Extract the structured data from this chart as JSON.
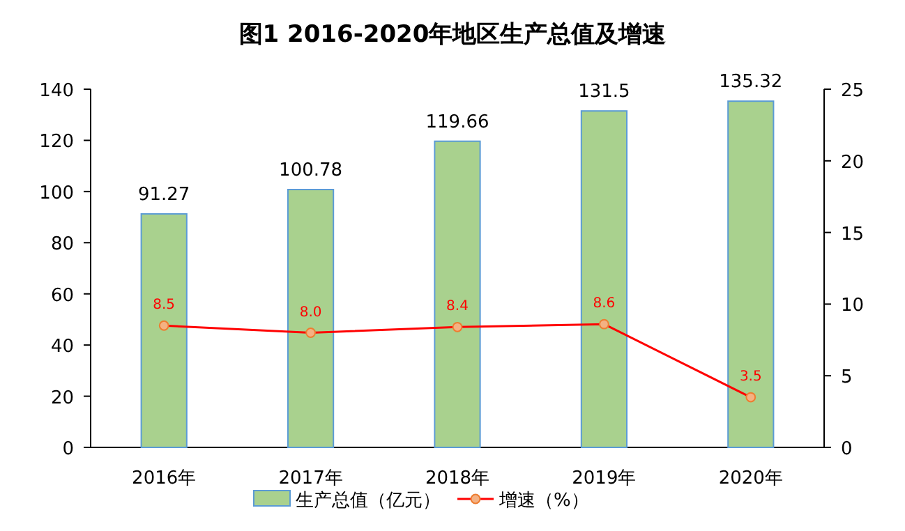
{
  "chart_data": {
    "type": "bar",
    "title": "图1  2016-2020年地区生产总值及增速",
    "categories": [
      "2016年",
      "2017年",
      "2018年",
      "2019年",
      "2020年"
    ],
    "series": [
      {
        "name": "生产总值（亿元）",
        "color": "#a9d18e",
        "values": [
          91.27,
          100.78,
          119.66,
          131.5,
          135.32
        ]
      },
      {
        "name": "增速（%）",
        "type": "line",
        "axis": "y2",
        "color": "#ff0000",
        "values": [
          8.5,
          8.0,
          8.4,
          8.6,
          3.5
        ],
        "value_labels": [
          "8.5",
          "8.0",
          "8.4",
          "8.6",
          "3.5"
        ]
      }
    ],
    "ylim": [
      0,
      140
    ],
    "yticks": [
      0,
      20,
      40,
      60,
      80,
      100,
      120,
      140
    ],
    "y2lim": [
      0,
      25
    ],
    "y2ticks": [
      0,
      5,
      10,
      15,
      20,
      25
    ],
    "data_labels": true,
    "legend": "bottom",
    "grid": false,
    "marker": "circle",
    "line_style": "solid"
  }
}
